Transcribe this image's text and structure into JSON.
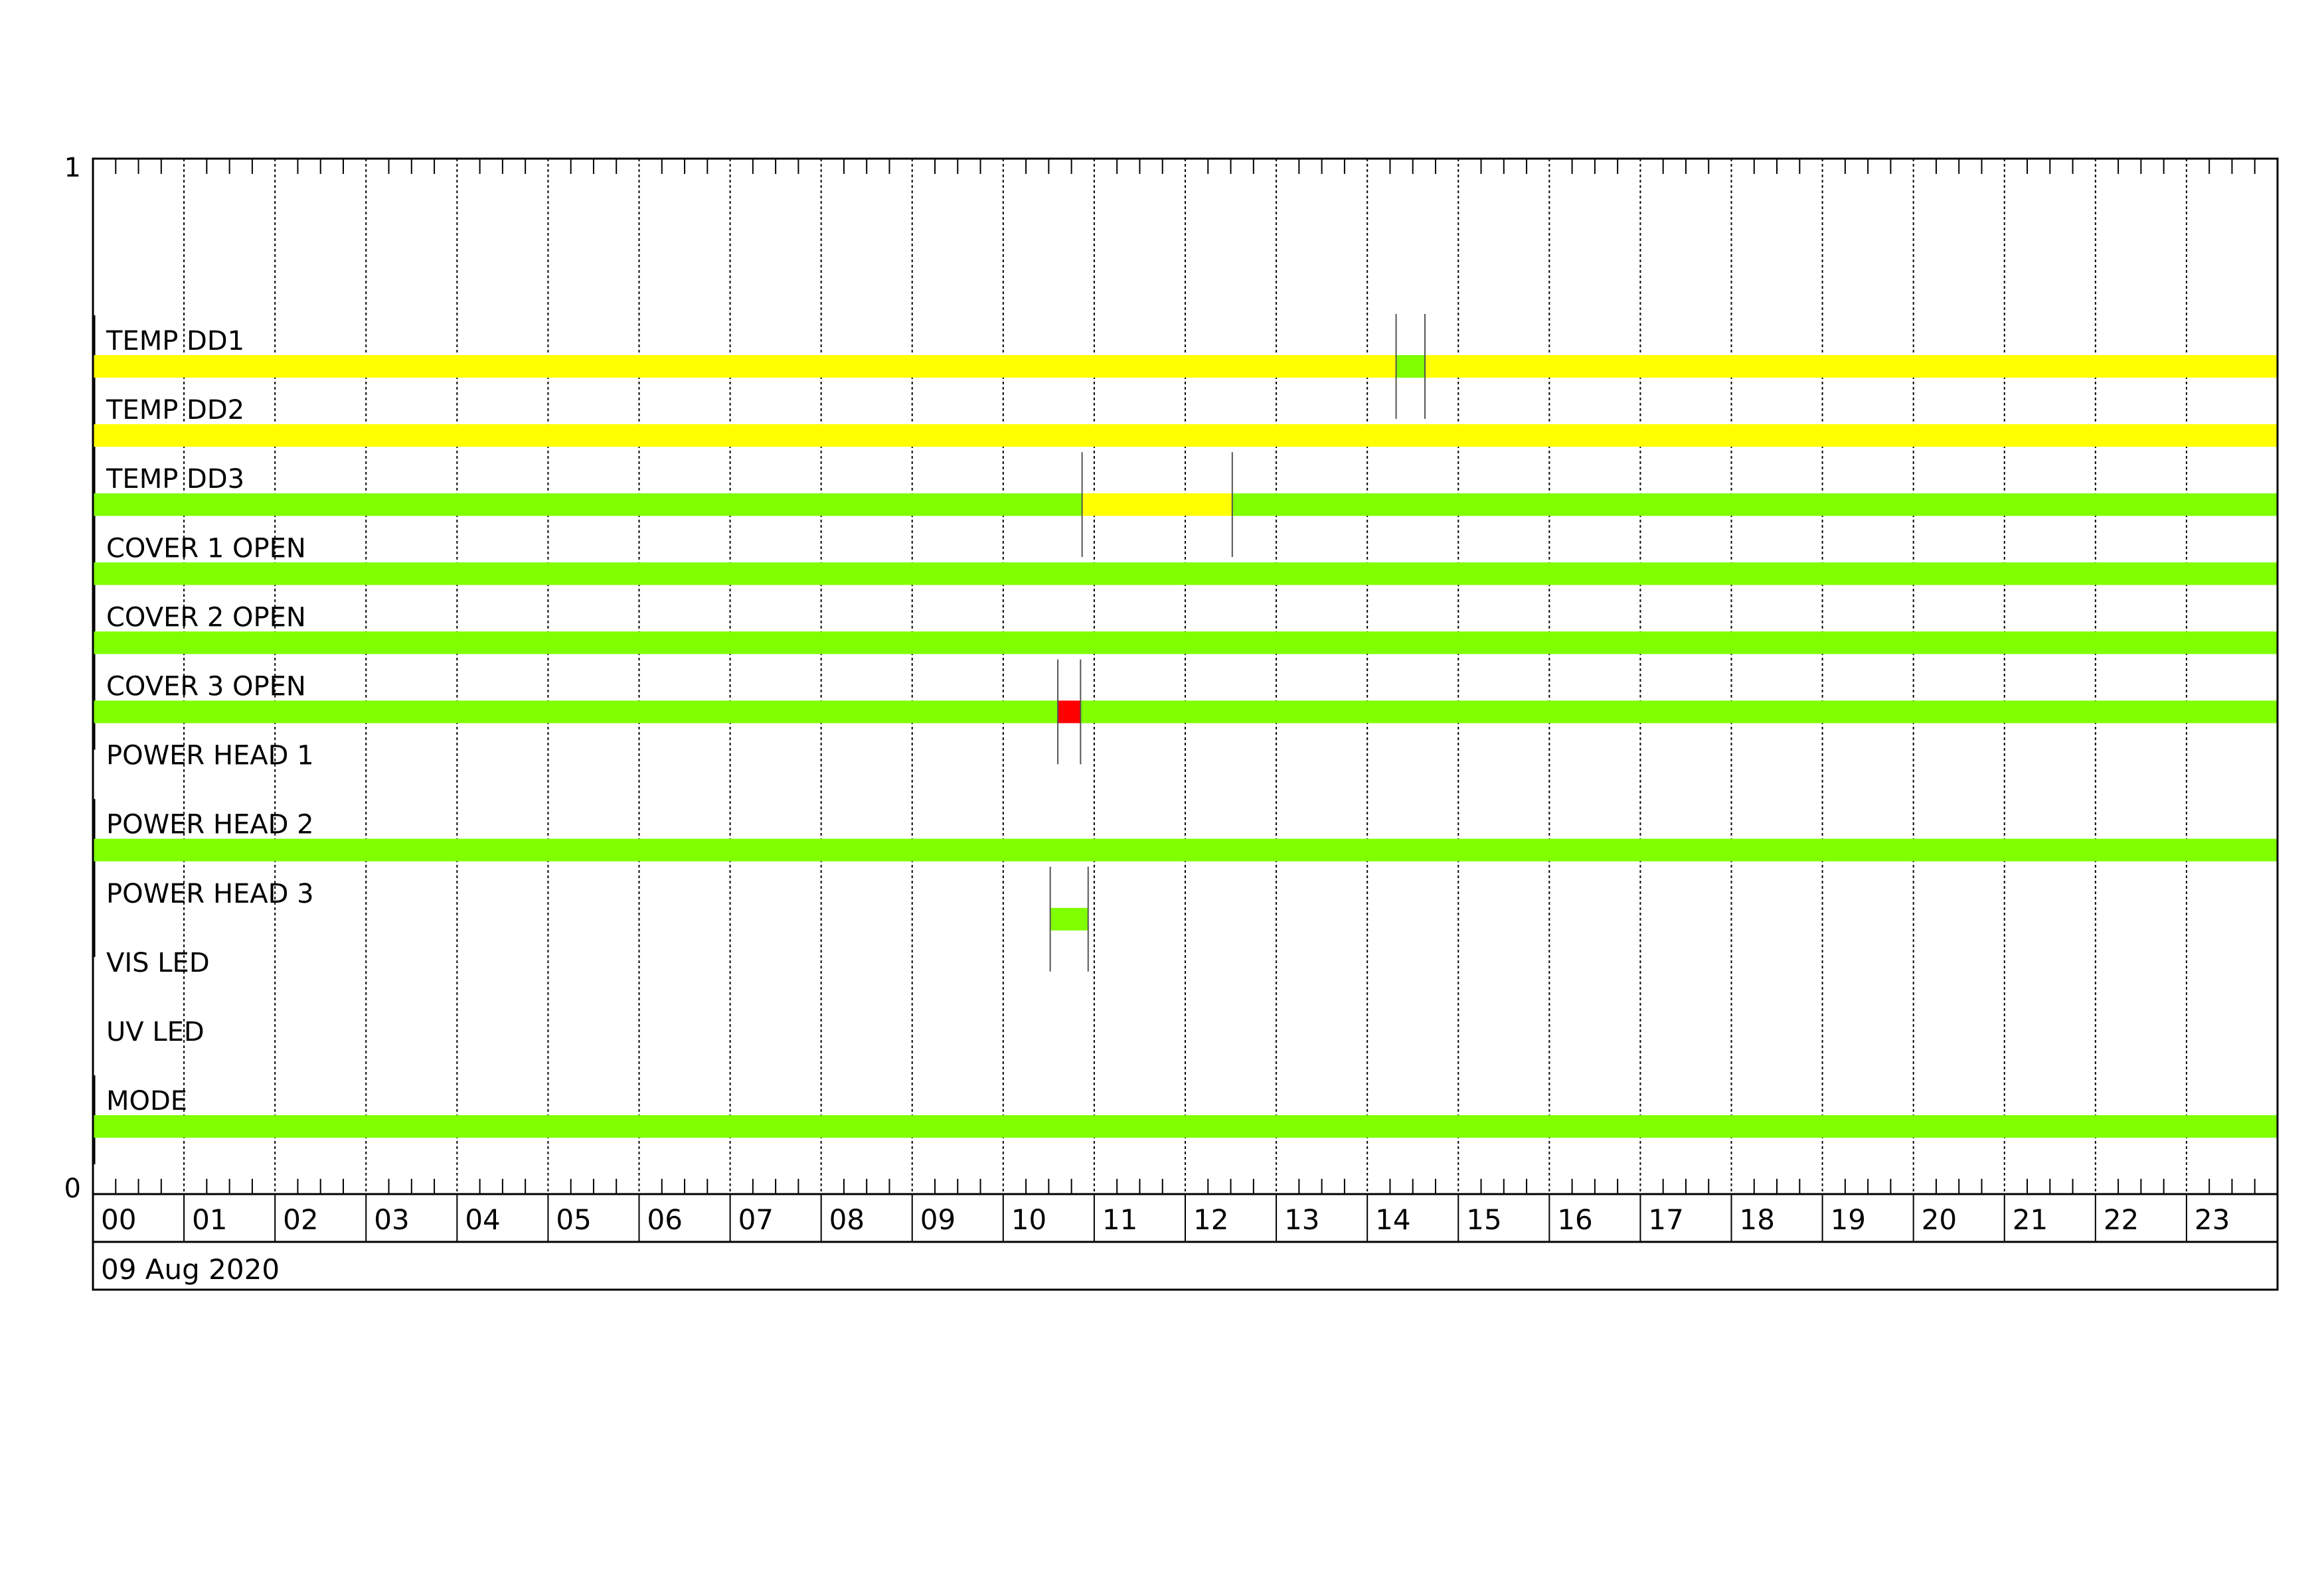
{
  "chart_data": {
    "type": "timeline",
    "date_label": "09 Aug 2020",
    "x_tick_labels": [
      "00",
      "01",
      "02",
      "03",
      "04",
      "05",
      "06",
      "07",
      "08",
      "09",
      "10",
      "11",
      "12",
      "13",
      "14",
      "15",
      "16",
      "17",
      "18",
      "19",
      "20",
      "21",
      "22",
      "23"
    ],
    "xlim_hours": [
      0,
      24
    ],
    "y_tick_labels": [
      "1",
      "0"
    ],
    "ylim": [
      0,
      1
    ],
    "grid": "vertical dotted lines every hour, minor ticks every 15 min",
    "colors": {
      "ok": "#7fff00",
      "warn": "#ffff00",
      "alarm": "#ff0000"
    },
    "rows": [
      {
        "label": "TEMP DD1",
        "segments": [
          {
            "start": "00:00",
            "end": "14:19",
            "state": "warn"
          },
          {
            "start": "14:19",
            "end": "14:38",
            "state": "ok"
          },
          {
            "start": "14:38",
            "end": "24:00",
            "state": "warn"
          }
        ]
      },
      {
        "label": "TEMP DD2",
        "segments": [
          {
            "start": "00:00",
            "end": "24:00",
            "state": "warn"
          }
        ]
      },
      {
        "label": "TEMP DD3",
        "segments": [
          {
            "start": "00:00",
            "end": "10:52",
            "state": "ok"
          },
          {
            "start": "10:52",
            "end": "12:31",
            "state": "warn"
          },
          {
            "start": "12:31",
            "end": "24:00",
            "state": "ok"
          }
        ]
      },
      {
        "label": "COVER 1 OPEN",
        "segments": [
          {
            "start": "00:00",
            "end": "24:00",
            "state": "ok"
          }
        ]
      },
      {
        "label": "COVER 2 OPEN",
        "segments": [
          {
            "start": "00:00",
            "end": "24:00",
            "state": "ok"
          }
        ]
      },
      {
        "label": "COVER 3 OPEN",
        "segments": [
          {
            "start": "00:00",
            "end": "10:36",
            "state": "ok"
          },
          {
            "start": "10:36",
            "end": "10:51",
            "state": "alarm"
          },
          {
            "start": "10:51",
            "end": "24:00",
            "state": "ok"
          }
        ]
      },
      {
        "label": "POWER HEAD 1",
        "segments": []
      },
      {
        "label": "POWER HEAD 2",
        "segments": [
          {
            "start": "00:00",
            "end": "24:00",
            "state": "ok"
          }
        ]
      },
      {
        "label": "POWER HEAD 3",
        "segments": [
          {
            "start": "10:31",
            "end": "10:56",
            "state": "ok"
          }
        ]
      },
      {
        "label": "VIS LED",
        "segments": []
      },
      {
        "label": "UV LED",
        "segments": []
      },
      {
        "label": "MODE",
        "segments": [
          {
            "start": "00:00",
            "end": "24:00",
            "state": "ok"
          }
        ]
      }
    ]
  }
}
